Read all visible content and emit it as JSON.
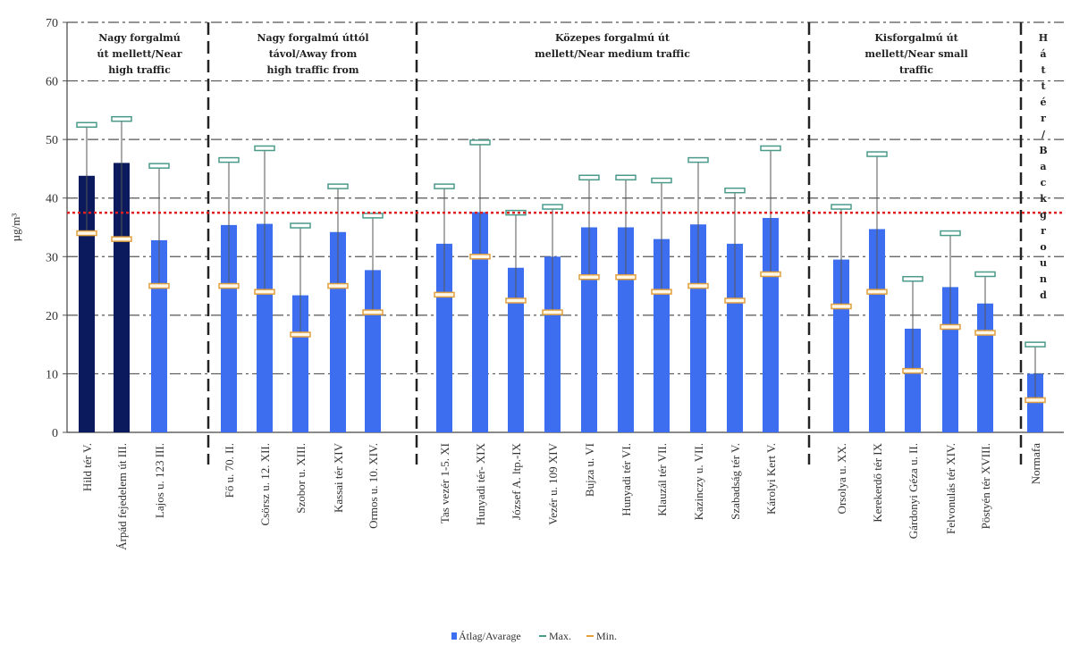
{
  "chart_data": {
    "type": "bar",
    "ylabel": "µg/m³",
    "ylim": [
      0,
      70
    ],
    "yticks": [
      0,
      10,
      20,
      30,
      40,
      50,
      60,
      70
    ],
    "grid": true,
    "reference_line": 37.5,
    "legend_position": "bottom",
    "legend": {
      "avg": "Átlag/Avarage",
      "max": "Max.",
      "min": "Min."
    },
    "colors": {
      "dark_bar": "#0a1a5c",
      "bar": "#3d6ef0",
      "max_marker": "#4a9a8a",
      "min_marker": "#e0a040",
      "reference_line": "#e02020"
    },
    "groups": [
      {
        "label": [
          "Nagy forgalmú",
          "út mellett/Near",
          "high traffic"
        ],
        "vertical": false
      },
      {
        "label": [
          "Nagy forgalmú úttól",
          "távol/Away from",
          "high traffic from"
        ],
        "vertical": false
      },
      {
        "label": [
          "Közepes forgalmú út",
          "mellett/Near medium traffic"
        ],
        "vertical": false
      },
      {
        "label": [
          "Kisforgalmú út",
          "mellett/Near small",
          "traffic"
        ],
        "vertical": false
      },
      {
        "label": [
          "H",
          "á",
          "t",
          "t",
          "é",
          "r",
          "/",
          "B",
          "a",
          "c",
          "k",
          "g",
          "r",
          "o",
          "u",
          "n",
          "d"
        ],
        "vertical": true
      }
    ],
    "categories": [
      "Hild tér V.",
      "Árpád fejedelem út III.",
      "Lajos u. 123 III.",
      "Fő u. 70. II.",
      "Csörsz u. 12. XII.",
      "Szobor u. XIII.",
      "Kassai tér XIV",
      "Ormos u. 10. XIV.",
      "Tas vezér 1-5. XI",
      "Hunyadi tér- XIX",
      "József A. ltp.-IX",
      "Vezér u. 109 XIV",
      "Bujza u. VI",
      "Hunyadi tér VI.",
      "Klauzál tér VII.",
      "Kazinczy u. VII.",
      "Szabadság tér V.",
      "Károlyi Kert V.",
      "Orsolya u. XX.",
      "Kerekerdő tér IX",
      "Gárdonyi Géza u. II.",
      "Felvonulás tér XIV.",
      "Pöstyén tér XVIII.",
      "Normafa"
    ],
    "series": [
      {
        "name": "Átlag/Avarage",
        "values": [
          43.8,
          46.0,
          32.8,
          35.4,
          35.6,
          23.4,
          34.2,
          27.7,
          32.2,
          37.6,
          28.1,
          30.0,
          35.0,
          35.0,
          33.0,
          35.5,
          32.2,
          36.6,
          29.5,
          34.7,
          17.7,
          24.8,
          22.0,
          10.0
        ]
      },
      {
        "name": "Max.",
        "values": [
          52.5,
          53.5,
          45.5,
          46.5,
          48.5,
          35.3,
          42.0,
          37.0,
          42.0,
          49.5,
          37.5,
          38.5,
          43.5,
          43.5,
          43.0,
          46.5,
          41.3,
          48.5,
          38.5,
          47.5,
          26.2,
          34.0,
          27.0,
          15.0
        ]
      },
      {
        "name": "Min.",
        "values": [
          34.0,
          33.0,
          25.0,
          25.0,
          24.0,
          16.7,
          25.0,
          20.5,
          23.5,
          30.0,
          22.5,
          20.5,
          26.5,
          26.5,
          24.0,
          25.0,
          22.5,
          27.0,
          21.5,
          24.0,
          10.5,
          18.0,
          17.0,
          5.5
        ]
      }
    ],
    "dark_bars": [
      0,
      1
    ]
  }
}
